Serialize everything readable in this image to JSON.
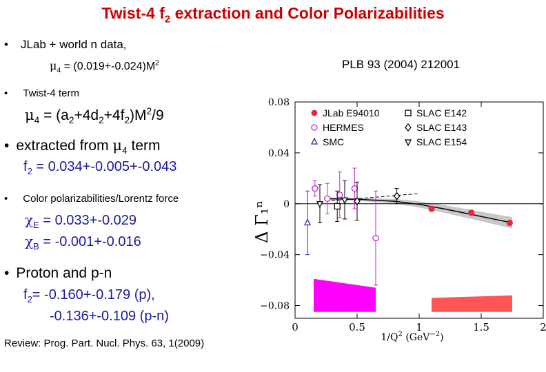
{
  "title": "Twist-4 f",
  "title_sub": "2",
  "title_rest": " extraction and Color Polarizabilities",
  "bullet_char": "•",
  "b1": "JLab + world n data,",
  "mu4_sym": "μ",
  "mu4_sub": "4",
  "mu4_val": " = (0.019+-0.024)M",
  "mu4_sup": "2",
  "reference": "PLB 93 (2004) 212001",
  "b2": "Twist-4 term",
  "eq": {
    "lhs": " = (a",
    "s1": "2",
    "p2": "+4d",
    "s2": "2",
    "p3": "+4f",
    "s3": "2",
    "p4": ")M",
    "sup": "2",
    "p5": "/9"
  },
  "b3_pre": "extracted from ",
  "b3_post": " term",
  "f2_a": "f",
  "f2_sub": "2",
  "f2_val": " = 0.034+-0.005+-0.043",
  "b4": "Color polarizabilities/Lorentz force",
  "chi_sym": "χ",
  "chiE_sub": "E",
  "chiE_val": " = 0.033+-0.029",
  "chiB_sub": "B",
  "chiB_val": " = -0.001+-0.016",
  "b5": "Proton and p-n",
  "f2p_val": "=  -0.160+-0.179 (p),",
  "f2pn_val": "-0.136+-0.109 (p-n)",
  "review": "Review:  Prog. Part. Nucl. Phys. 63, 1(2009)",
  "chart_data": {
    "type": "scatter",
    "ylabel": "Δ Γ₁ⁿ",
    "xlabel_main": "1/Q",
    "xlabel_sup": "2",
    "xlabel_unit": " (GeV",
    "xlabel_unit_sup": "−2",
    "xlabel_close": ")",
    "xlim": [
      0,
      2
    ],
    "ylim": [
      -0.09,
      0.08
    ],
    "x_ticks": [
      0,
      0.5,
      1,
      1.5,
      2
    ],
    "x_tick_labels": [
      "0",
      "0.5",
      "1",
      "1.5",
      "2"
    ],
    "y_ticks": [
      0.08,
      0.04,
      0,
      -0.04,
      -0.08
    ],
    "y_tick_labels": [
      "0.08",
      "0.04",
      "0",
      "−0.04",
      "−0.08"
    ],
    "legend": [
      "JLab E94010",
      "HERMES",
      "SMC",
      "SLAC E142",
      "SLAC E143",
      "SLAC E154"
    ],
    "colors": {
      "jlab": "#e8283a",
      "hermes": "#cc22cc",
      "smc": "#2a2aa0",
      "slac": "#000000",
      "band": "#c8c8c8",
      "mag_box": "#ff00ff",
      "red_box": "#ff5555"
    },
    "series": [
      {
        "name": "JLab E94010",
        "marker": "filled-circle",
        "x": [
          1.1,
          1.42,
          1.73
        ],
        "y": [
          -0.004,
          -0.007,
          -0.015
        ],
        "err": [
          0.002,
          0.002,
          0.002
        ]
      },
      {
        "name": "HERMES",
        "marker": "open-circle",
        "x": [
          0.16,
          0.26,
          0.36,
          0.48,
          0.65
        ],
        "y": [
          0.012,
          0.004,
          0.007,
          0.012,
          -0.027
        ],
        "err": [
          0.006,
          0.012,
          0.018,
          0.016,
          0.037
        ]
      },
      {
        "name": "SMC",
        "marker": "open-triangle-up",
        "x": [
          0.1
        ],
        "y": [
          -0.015
        ],
        "err": [
          0.025
        ]
      },
      {
        "name": "SLAC E142",
        "marker": "open-square",
        "x": [
          0.34
        ],
        "y": [
          -0.002
        ],
        "err": [
          0.012
        ]
      },
      {
        "name": "SLAC E143",
        "marker": "open-diamond",
        "x": [
          0.5,
          0.82
        ],
        "y": [
          0.002,
          0.006
        ],
        "err": [
          0.015,
          0.006
        ]
      },
      {
        "name": "SLAC E154",
        "marker": "open-triangle-down",
        "x": [
          0.2,
          0.4
        ],
        "y": [
          0.0,
          0.003
        ],
        "err": [
          0.015,
          0.015
        ]
      }
    ],
    "curve": {
      "x": [
        0.25,
        0.5,
        0.8,
        1.0,
        1.2,
        1.4,
        1.6,
        1.75
      ],
      "y": [
        0.004,
        0.0035,
        0.002,
        -0.0005,
        -0.004,
        -0.008,
        -0.012,
        -0.015
      ]
    },
    "dashed": {
      "x": [
        0.25,
        1.0
      ],
      "y": [
        0.002,
        0.008
      ]
    },
    "band_halfwidth": [
      0.001,
      0.0012,
      0.0018,
      0.0025,
      0.003,
      0.0035,
      0.004,
      0.0045
    ],
    "systematics": [
      {
        "x": [
          0.15,
          0.65
        ],
        "ytop_left": -0.059,
        "ytop_right": -0.066,
        "ybottom": -0.085
      },
      {
        "x": [
          1.1,
          1.75
        ],
        "ytop_left": -0.074,
        "ytop_right": -0.072,
        "ybottom": -0.085
      }
    ]
  }
}
